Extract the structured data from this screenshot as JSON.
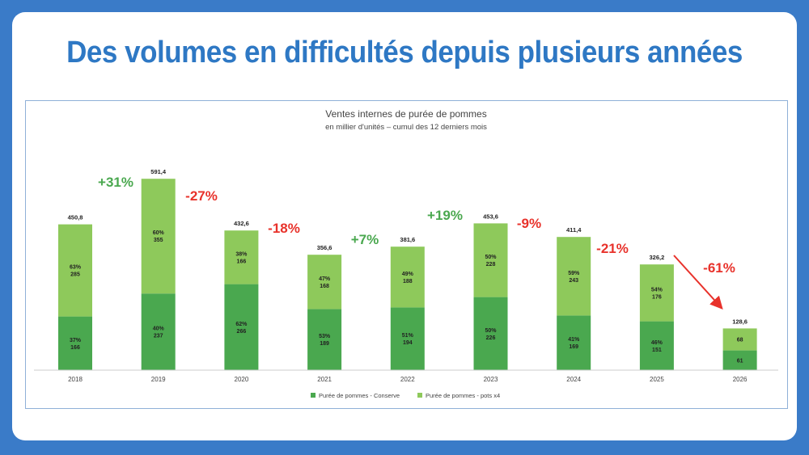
{
  "headline": "Des volumes en difficultés depuis plusieurs années",
  "colors": {
    "conserve": "#4aa84f",
    "pots": "#8ec95b",
    "up": "#4aa84f",
    "down": "#e8322b"
  },
  "chart_data": {
    "type": "bar",
    "stacked": true,
    "title": "Ventes internes de purée de pommes",
    "subtitle": "en millier d'unités – cumul des 12 derniers mois",
    "categories": [
      "2018",
      "2019",
      "2020",
      "2021",
      "2022",
      "2023",
      "2024",
      "2025",
      "2026"
    ],
    "totals": [
      "450,8",
      "591,4",
      "432,6",
      "356,6",
      "381,6",
      "453,6",
      "411,4",
      "326,2",
      "128,6"
    ],
    "series": [
      {
        "name": "Purée de pommes - Conserve",
        "values": [
          166,
          237,
          266,
          189,
          194,
          226,
          169,
          151,
          61
        ],
        "labels": [
          "37%\n166",
          "40%\n237",
          "62%\n266",
          "53%\n189",
          "51%\n194",
          "50%\n226",
          "41%\n169",
          "46%\n151",
          "61"
        ]
      },
      {
        "name": "Purée de pommes - pots x4",
        "values": [
          285,
          355,
          166,
          168,
          188,
          228,
          243,
          176,
          68
        ],
        "labels": [
          "63%\n285",
          "60%\n355",
          "38%\n166",
          "47%\n168",
          "49%\n188",
          "50%\n228",
          "59%\n243",
          "54%\n176",
          "68"
        ]
      }
    ],
    "changes": [
      "+31%",
      "-27%",
      "-18%",
      "+7%",
      "+19%",
      "-9%",
      "-21%",
      "-61%"
    ],
    "ylim": [
      0,
      620
    ],
    "grid": false,
    "legend": "bottom"
  }
}
